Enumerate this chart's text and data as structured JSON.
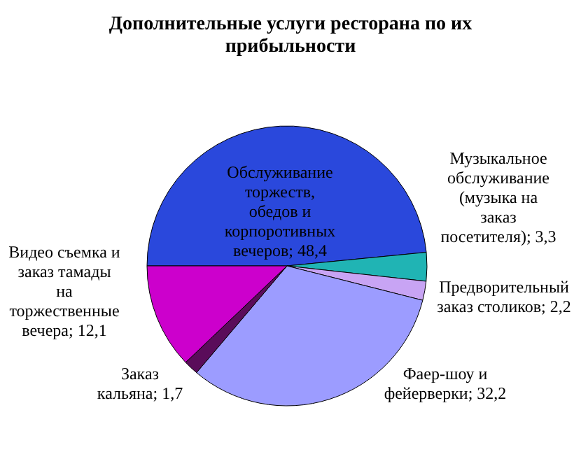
{
  "chart_data": {
    "type": "pie",
    "title": "Дополнительные услуги ресторана по их прибыльности",
    "categories": [
      "Обслуживание торжеств, обедов и корпоротивных вечеров",
      "Музыкальное обслуживание (музыка на заказ посетителя)",
      "Предворительный заказ столиков",
      "Фаер-шоу и фейерверки",
      "Заказ кальяна",
      "Видео съемка и заказ тамады на торжественные вечера"
    ],
    "values": [
      48.4,
      3.3,
      2.2,
      32.2,
      1.7,
      12.1
    ],
    "value_labels": [
      "48,4",
      "3,3",
      "2,2",
      "32,2",
      "1,7",
      "12,1"
    ],
    "colors": [
      "#2a48dc",
      "#20b4b4",
      "#c8a4f4",
      "#9c9cff",
      "#5a0c5a",
      "#cc00cc"
    ]
  }
}
